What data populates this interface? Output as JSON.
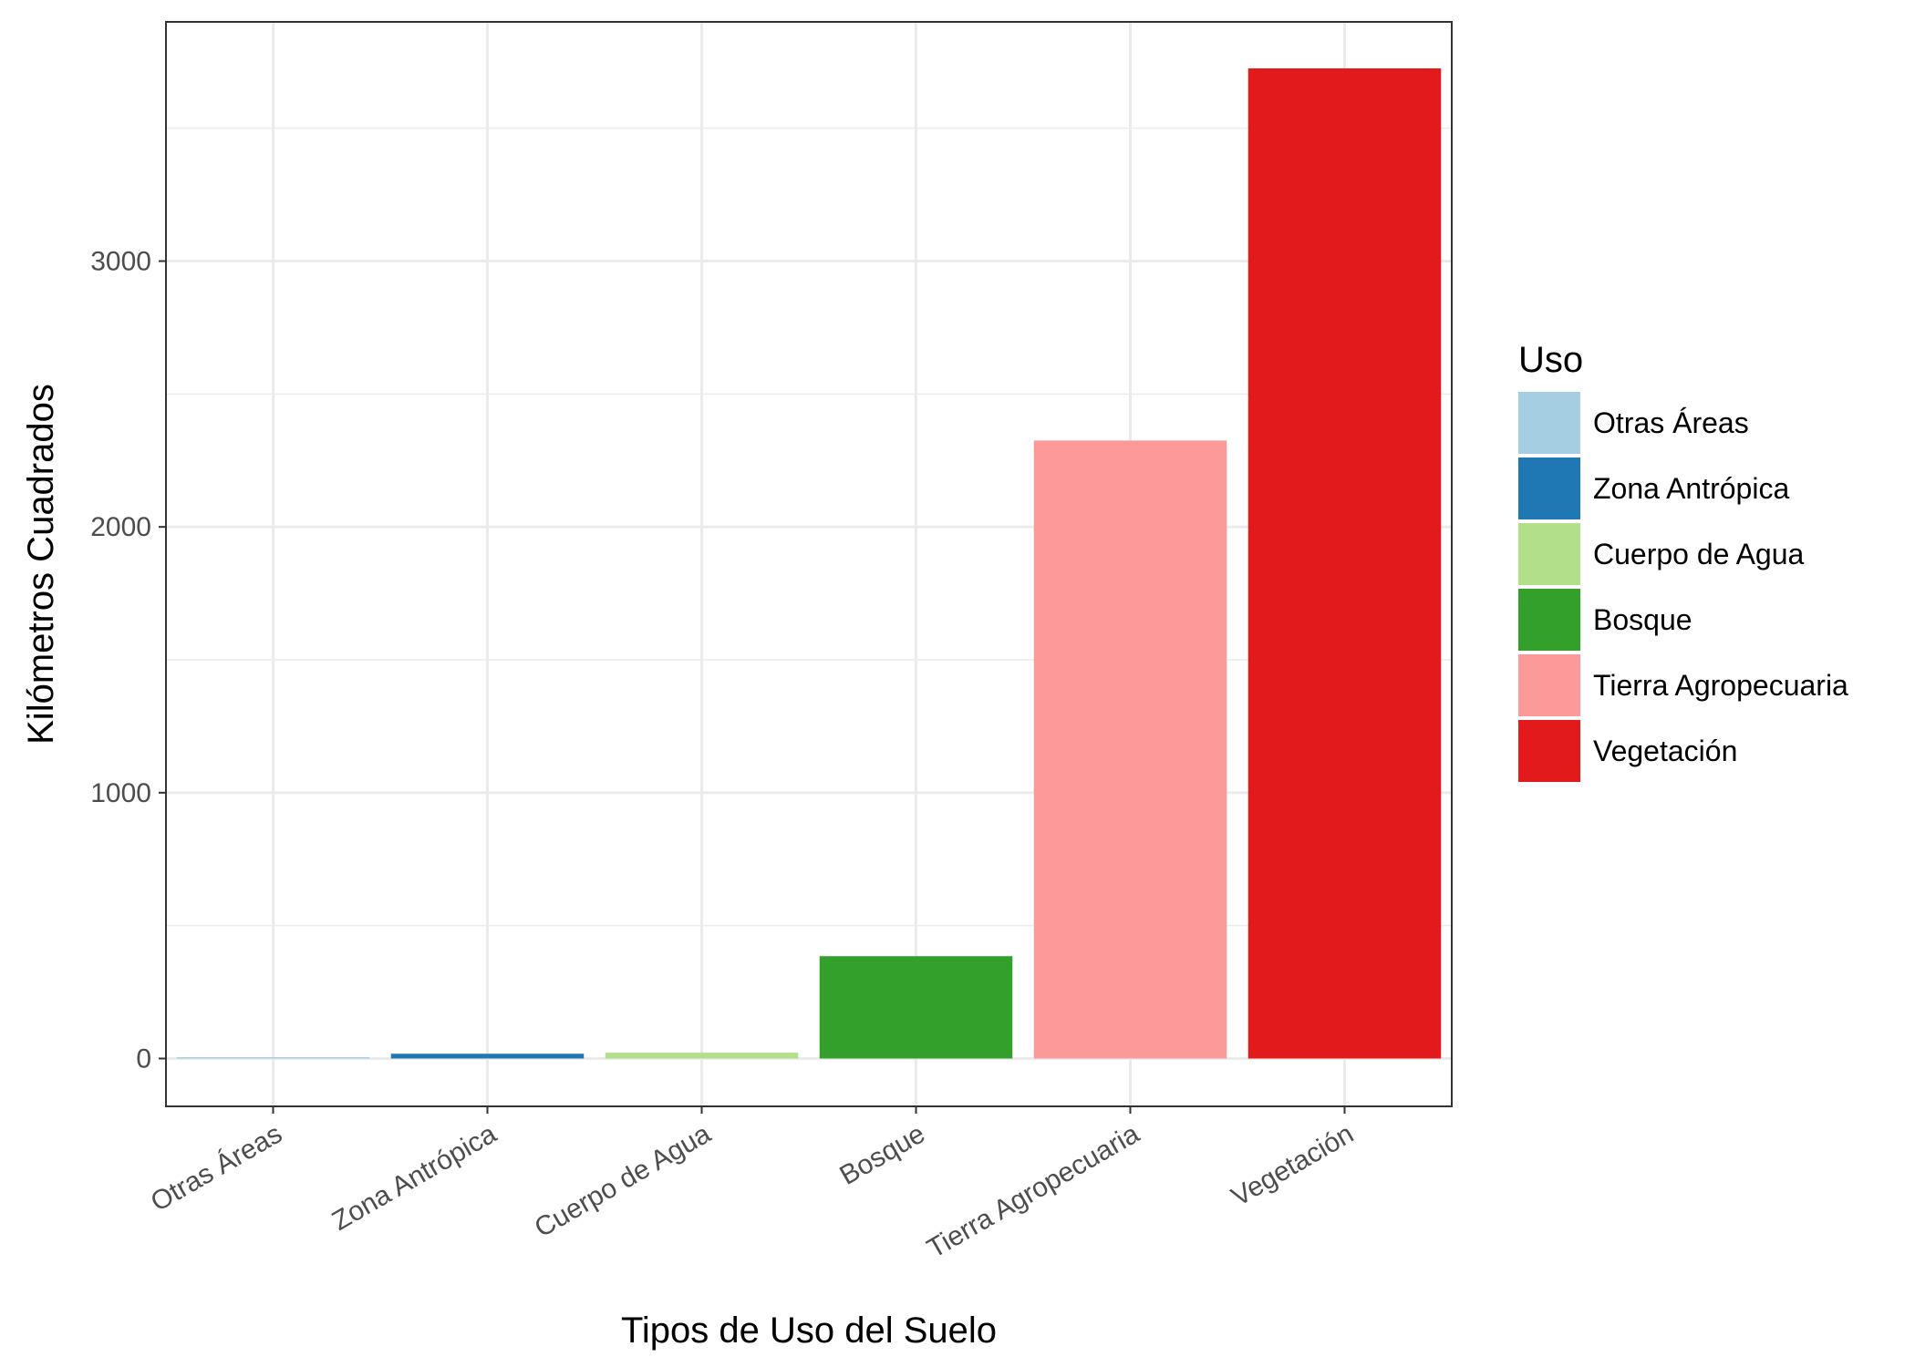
{
  "chart_data": {
    "type": "bar",
    "categories": [
      "Otras Áreas",
      "Zona Antrópica",
      "Cuerpo de Agua",
      "Bosque",
      "Tierra Agropecuaria",
      "Vegetación"
    ],
    "values": [
      5,
      18,
      22,
      385,
      2325,
      3725
    ],
    "colors": [
      "#a6cee3",
      "#1f78b4",
      "#b2df8a",
      "#33a02c",
      "#fb9a99",
      "#e31a1c"
    ],
    "xlabel": "Tipos de Uso del Suelo",
    "ylabel": "Kilómetros Cuadrados",
    "ylim": [
      -180,
      3900
    ],
    "yticks": [
      0,
      1000,
      2000,
      3000
    ],
    "ytick_labels": [
      "0",
      "1000",
      "2000",
      "3000"
    ],
    "grid": true,
    "legend": {
      "title": "Uso",
      "position": "right",
      "entries": [
        "Otras Áreas",
        "Zona Antrópica",
        "Cuerpo de Agua",
        "Bosque",
        "Tierra Agropecuaria",
        "Vegetación"
      ]
    }
  }
}
